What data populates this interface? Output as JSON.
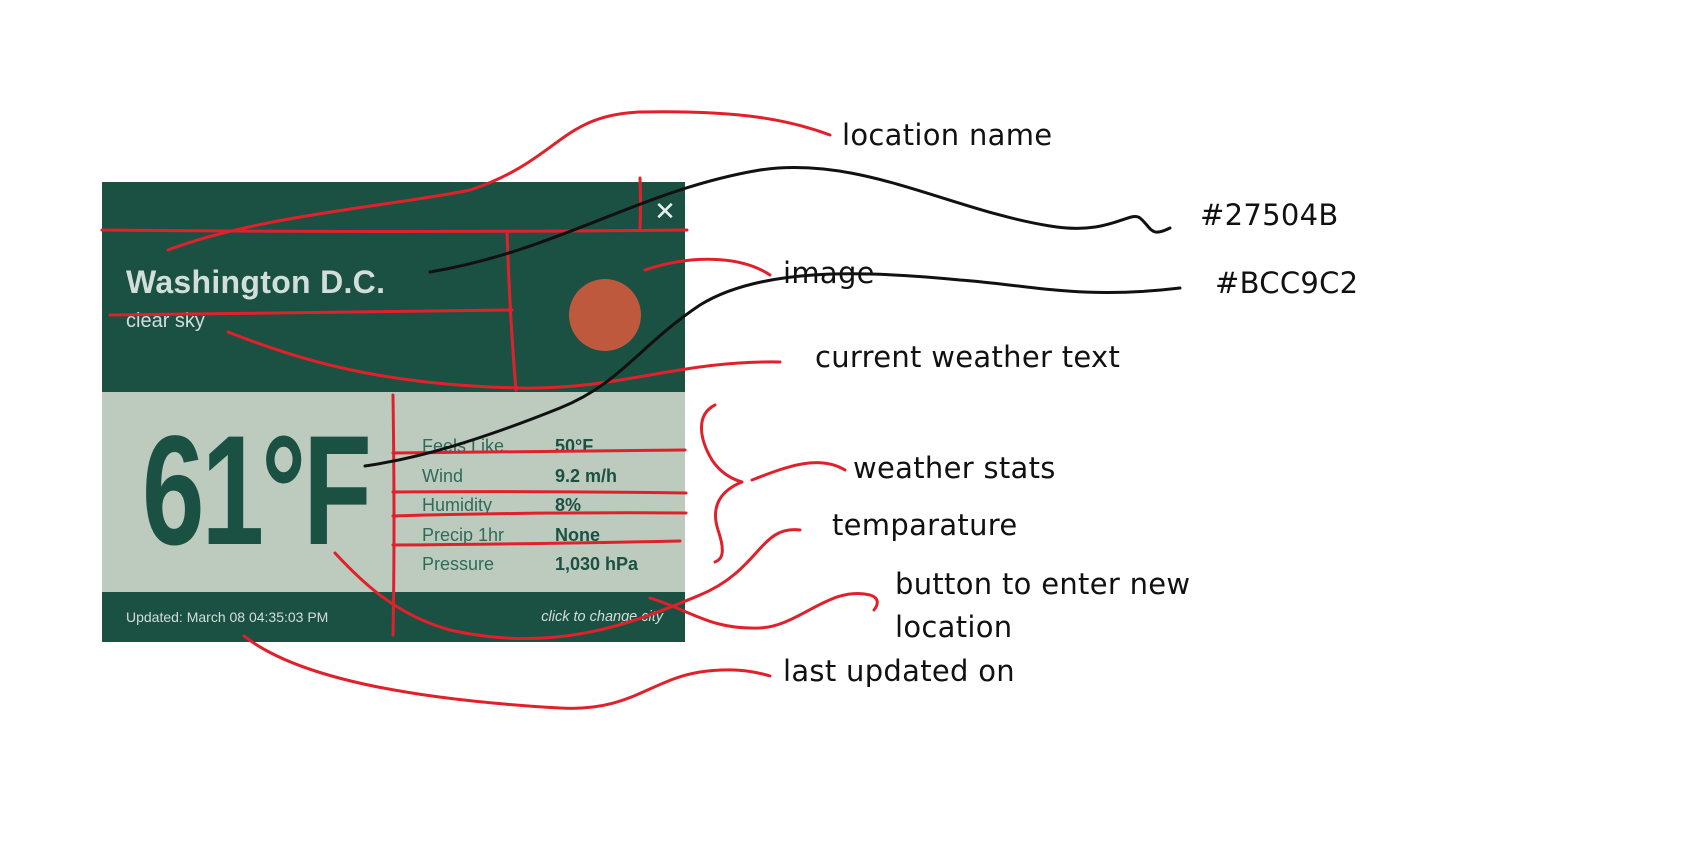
{
  "colors": {
    "primary": "#1B5143",
    "secondary": "#BCCBBE",
    "sun": "#BF593E",
    "ink_red": "#E0212B",
    "ink_black": "#111111",
    "light_text": "#D2DED9"
  },
  "widget": {
    "close_icon": "close-icon",
    "location_name": "Washington D.C.",
    "description": "clear sky",
    "image_icon": "sun-icon",
    "temperature": "61°F",
    "stats": [
      {
        "label": "Feels Like",
        "value": "50°F"
      },
      {
        "label": "Wind",
        "value": "9.2 m/h"
      },
      {
        "label": "Humidity",
        "value": "8%"
      },
      {
        "label": "Precip 1hr",
        "value": "None"
      },
      {
        "label": "Pressure",
        "value": "1,030 hPa"
      }
    ],
    "updated": "Updated: March 08 04:35:03 PM",
    "change_city": "click to change city"
  },
  "annotations": {
    "location_name": "location name",
    "color_primary": "#27504B",
    "image": "image",
    "color_secondary": "#BCC9C2",
    "current_weather_text": "current weather text",
    "weather_stats": "weather stats",
    "temperature": "temparature",
    "change_button_line1": "button to enter new",
    "change_button_line2": "location",
    "last_updated": "last updated on"
  }
}
